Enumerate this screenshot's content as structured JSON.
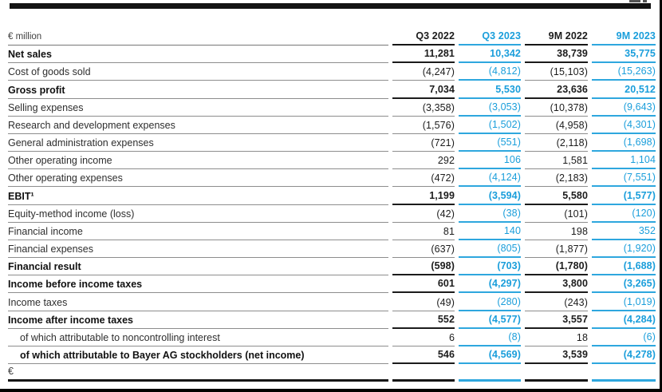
{
  "page": {
    "accent_blue": "#1a9edb",
    "text_black": "#1c1c1c",
    "line_gray": "#8d8d8d"
  },
  "table": {
    "unit_label": "€ million",
    "columns": [
      {
        "label": "Q3 2022",
        "color": "black"
      },
      {
        "label": "Q3 2023",
        "color": "blue"
      },
      {
        "label": "9M 2022",
        "color": "black"
      },
      {
        "label": "9M 2023",
        "color": "blue"
      }
    ],
    "rows": [
      {
        "label": "Net sales",
        "values": [
          "11,281",
          "10,342",
          "38,739",
          "35,775"
        ],
        "bold": true,
        "indent": false
      },
      {
        "label": "Cost of goods sold",
        "values": [
          "(4,247)",
          "(4,812)",
          "(15,103)",
          "(15,263)"
        ],
        "bold": false,
        "indent": false
      },
      {
        "label": "Gross profit",
        "values": [
          "7,034",
          "5,530",
          "23,636",
          "20,512"
        ],
        "bold": true,
        "indent": false
      },
      {
        "label": "Selling expenses",
        "values": [
          "(3,358)",
          "(3,053)",
          "(10,378)",
          "(9,643)"
        ],
        "bold": false,
        "indent": false
      },
      {
        "label": "Research and development expenses",
        "values": [
          "(1,576)",
          "(1,502)",
          "(4,958)",
          "(4,301)"
        ],
        "bold": false,
        "indent": false
      },
      {
        "label": "General administration expenses",
        "values": [
          "(721)",
          "(551)",
          "(2,118)",
          "(1,698)"
        ],
        "bold": false,
        "indent": false
      },
      {
        "label": "Other operating income",
        "values": [
          "292",
          "106",
          "1,581",
          "1,104"
        ],
        "bold": false,
        "indent": false
      },
      {
        "label": "Other operating expenses",
        "values": [
          "(472)",
          "(4,124)",
          "(2,183)",
          "(7,551)"
        ],
        "bold": false,
        "indent": false
      },
      {
        "label": "EBIT¹",
        "values": [
          "1,199",
          "(3,594)",
          "5,580",
          "(1,577)"
        ],
        "bold": true,
        "indent": false
      },
      {
        "label": "Equity-method income (loss)",
        "values": [
          "(42)",
          "(38)",
          "(101)",
          "(120)"
        ],
        "bold": false,
        "indent": false
      },
      {
        "label": "Financial income",
        "values": [
          "81",
          "140",
          "198",
          "352"
        ],
        "bold": false,
        "indent": false
      },
      {
        "label": "Financial expenses",
        "values": [
          "(637)",
          "(805)",
          "(1,877)",
          "(1,920)"
        ],
        "bold": false,
        "indent": false
      },
      {
        "label": "Financial result",
        "values": [
          "(598)",
          "(703)",
          "(1,780)",
          "(1,688)"
        ],
        "bold": true,
        "indent": false
      },
      {
        "label": "Income before income taxes",
        "values": [
          "601",
          "(4,297)",
          "3,800",
          "(3,265)"
        ],
        "bold": true,
        "indent": false
      },
      {
        "label": "Income taxes",
        "values": [
          "(49)",
          "(280)",
          "(243)",
          "(1,019)"
        ],
        "bold": false,
        "indent": false
      },
      {
        "label": "Income after income taxes",
        "values": [
          "552",
          "(4,577)",
          "3,557",
          "(4,284)"
        ],
        "bold": true,
        "indent": false
      },
      {
        "label": "of which attributable to noncontrolling interest",
        "values": [
          "6",
          "(8)",
          "18",
          "(6)"
        ],
        "bold": false,
        "indent": true
      },
      {
        "label": "of which attributable to Bayer AG stockholders (net income)",
        "values": [
          "546",
          "(4,569)",
          "3,539",
          "(4,278)"
        ],
        "bold": true,
        "indent": true
      }
    ],
    "footer_label": "€"
  }
}
